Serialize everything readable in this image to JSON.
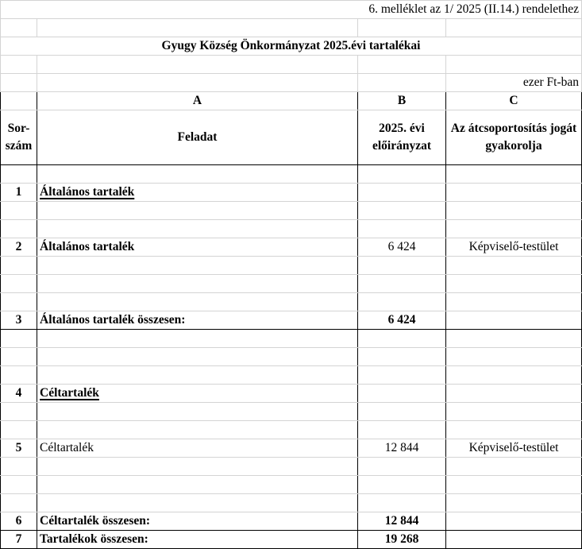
{
  "doc": {
    "annex_note": "6. melléklet az 1/ 2025 (II.14.)  rendelethez",
    "title": "Gyugy Község Önkormányzat 2025.évi tartalékai",
    "unit": "ezer Ft-ban"
  },
  "table": {
    "col_letters": [
      "A",
      "B",
      "C"
    ],
    "headers": {
      "num": "Sor-szám",
      "task": "Feladat",
      "amount": "2025. évi előirányzat",
      "authority": "Az átcsoportosítás jogát gyakorolja"
    },
    "rows": [
      {
        "num": "1",
        "task": "Általános tartalék",
        "amount": "",
        "authority": ""
      },
      {
        "num": "2",
        "task": "Általános tartalék",
        "amount": "6 424",
        "authority": "Képviselő-testület"
      },
      {
        "num": "3",
        "task": "Általános tartalék összesen:",
        "amount": "6 424",
        "authority": ""
      },
      {
        "num": "4",
        "task": "Céltartalék",
        "amount": "",
        "authority": ""
      },
      {
        "num": "5",
        "task": "Céltartalék",
        "amount": "12 844",
        "authority": "Képviselő-testület"
      },
      {
        "num": "6",
        "task": "Céltartalék összesen:",
        "amount": "12 844",
        "authority": ""
      },
      {
        "num": "7",
        "task": "Tartalékok összesen:",
        "amount": "19 268",
        "authority": ""
      }
    ]
  }
}
